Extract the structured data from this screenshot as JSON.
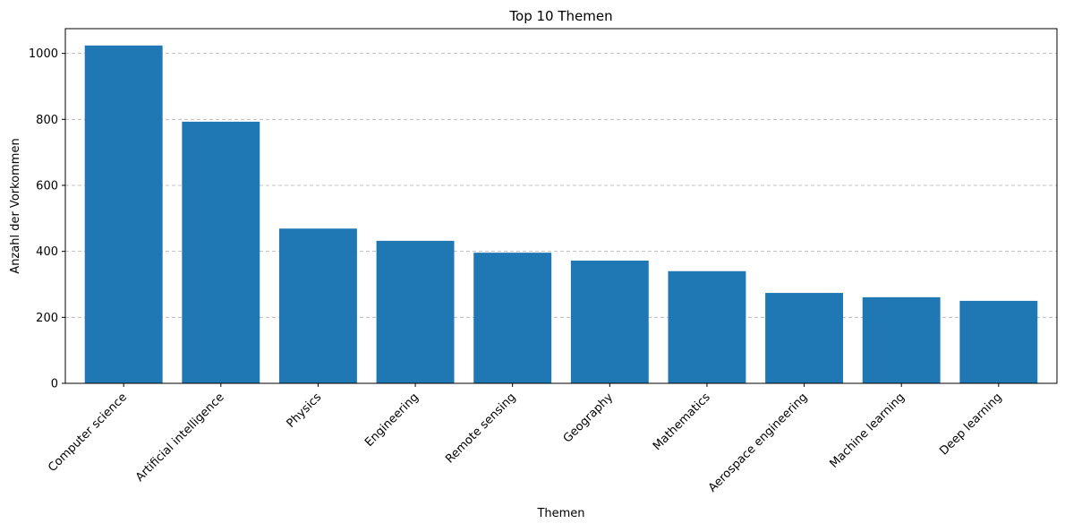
{
  "chart_data": {
    "type": "bar",
    "title": "Top 10 Themen",
    "xlabel": "Themen",
    "ylabel": "Anzahl der Vorkommen",
    "categories": [
      "Computer science",
      "Artificial intelligence",
      "Physics",
      "Engineering",
      "Remote sensing",
      "Geography",
      "Mathematics",
      "Aerospace engineering",
      "Machine learning",
      "Deep learning"
    ],
    "values": [
      1024,
      793,
      469,
      432,
      396,
      372,
      340,
      274,
      261,
      250
    ],
    "ylim": [
      0,
      1075
    ],
    "yticks": [
      0,
      200,
      400,
      600,
      800,
      1000
    ],
    "grid": "y-dashed",
    "bar_color": "#1f77b4",
    "grid_color": "#b0b0b0"
  }
}
